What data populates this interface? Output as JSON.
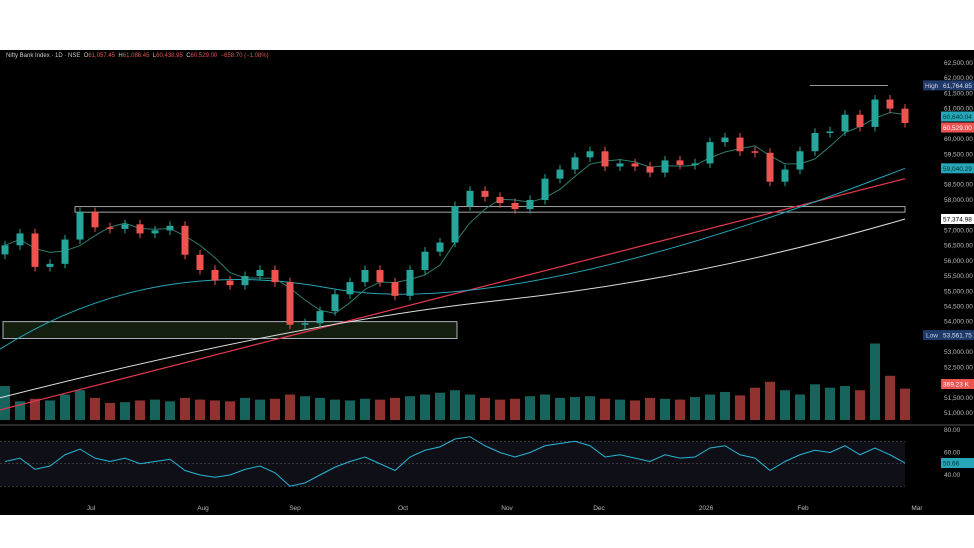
{
  "header": {
    "symbol": "Nifty Bank Index · 1D · NSE",
    "o_label": "O",
    "o": "61,057.45",
    "h_label": "H",
    "h": "61,086.45",
    "l_label": "L",
    "l": "60,438.95",
    "c_label": "C",
    "c": "60,529.00",
    "change": "−658.70 (−1.08%)"
  },
  "colors": {
    "up": "#26a69a",
    "down": "#ef5350",
    "ma_red": "#e53950",
    "ma_teal": "#26a6b8",
    "ma_white": "#dddddd",
    "ma_short": "#2e7d6d",
    "bg": "#000000"
  },
  "chart_data": {
    "type": "candlestick",
    "price_ticks": [
      "62,500.00",
      "62,000.00",
      "61,500.00",
      "61,000.00",
      "60,000.00",
      "59,500.00",
      "58,500.00",
      "58,000.00",
      "57,000.00",
      "56,500.00",
      "56,000.00",
      "55,500.00",
      "55,000.00",
      "54,500.00",
      "54,000.00",
      "53,000.00",
      "52,500.00",
      "51,500.00",
      "51,000.00"
    ],
    "ylim": [
      50700,
      62800
    ],
    "x_ticks": [
      "Jul",
      "Aug",
      "Sep",
      "Oct",
      "Nov",
      "Dec",
      "2026",
      "Feb",
      "Mar"
    ],
    "closes": [
      56510,
      56900,
      55800,
      55900,
      56700,
      57600,
      57100,
      57050,
      57200,
      56900,
      57000,
      57150,
      56200,
      55700,
      55350,
      55200,
      55500,
      55700,
      55300,
      53900,
      53950,
      54350,
      54900,
      55300,
      55700,
      55300,
      54850,
      55700,
      56300,
      56600,
      57800,
      58300,
      58100,
      57900,
      57700,
      58000,
      58700,
      59000,
      59400,
      59600,
      59100,
      59200,
      59100,
      58900,
      59300,
      59150,
      59200,
      59900,
      60050,
      59600,
      59550,
      58600,
      59000,
      59600,
      60200,
      60250,
      60800,
      60400,
      61300,
      61000,
      60529
    ],
    "volumes_k": [
      400,
      220,
      250,
      230,
      300,
      350,
      260,
      200,
      210,
      230,
      240,
      220,
      260,
      240,
      230,
      220,
      260,
      240,
      250,
      300,
      280,
      260,
      240,
      230,
      250,
      240,
      260,
      280,
      300,
      320,
      350,
      300,
      260,
      240,
      250,
      280,
      300,
      260,
      270,
      280,
      250,
      240,
      230,
      260,
      250,
      240,
      270,
      300,
      330,
      290,
      380,
      450,
      350,
      300,
      420,
      380,
      400,
      350,
      900,
      520,
      369.23
    ],
    "rsi": [
      52,
      55,
      45,
      48,
      58,
      63,
      55,
      52,
      55,
      50,
      52,
      54,
      44,
      40,
      38,
      40,
      45,
      48,
      42,
      30,
      33,
      40,
      47,
      52,
      56,
      50,
      44,
      56,
      62,
      65,
      72,
      74,
      66,
      60,
      56,
      60,
      66,
      68,
      70,
      66,
      56,
      58,
      55,
      52,
      58,
      55,
      56,
      64,
      66,
      58,
      55,
      44,
      52,
      58,
      62,
      60,
      66,
      58,
      64,
      58,
      50.66
    ],
    "rsi_ticks": [
      "80.00",
      "60.00",
      "40.00"
    ],
    "high_label": "High",
    "high_value": "61,764.85",
    "low_label": "Low",
    "low_value": "53,561.75",
    "ma_badges": [
      "60,640.04",
      "59,040.29",
      "57,374.98"
    ],
    "last_price_badge": "60,529.00",
    "volume_badge": "369.23 K",
    "rsi_badge": "50.66",
    "zones": [
      [
        57600,
        57780
      ],
      [
        53450,
        54000
      ]
    ]
  }
}
